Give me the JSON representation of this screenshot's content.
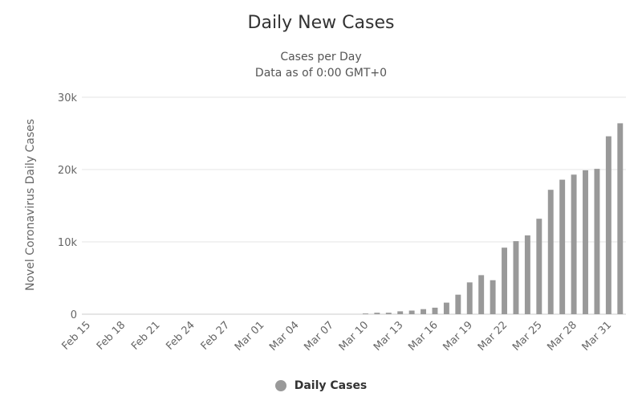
{
  "chart_data": {
    "type": "bar",
    "title": "Daily New Cases",
    "subtitle": [
      "Cases per Day",
      "Data as of 0:00 GMT+0"
    ],
    "xlabel": "",
    "ylabel": "Novel Coronavirus Daily Cases",
    "ylim": [
      0,
      30000
    ],
    "yticks": [
      {
        "value": 0,
        "label": "0"
      },
      {
        "value": 10000,
        "label": "10k"
      },
      {
        "value": 20000,
        "label": "20k"
      },
      {
        "value": 30000,
        "label": "30k"
      }
    ],
    "categories": [
      "Feb 15",
      "Feb 16",
      "Feb 17",
      "Feb 18",
      "Feb 19",
      "Feb 20",
      "Feb 21",
      "Feb 22",
      "Feb 23",
      "Feb 24",
      "Feb 25",
      "Feb 26",
      "Feb 27",
      "Feb 28",
      "Feb 29",
      "Mar 01",
      "Mar 02",
      "Mar 03",
      "Mar 04",
      "Mar 05",
      "Mar 06",
      "Mar 07",
      "Mar 08",
      "Mar 09",
      "Mar 10",
      "Mar 11",
      "Mar 12",
      "Mar 13",
      "Mar 14",
      "Mar 15",
      "Mar 16",
      "Mar 17",
      "Mar 18",
      "Mar 19",
      "Mar 20",
      "Mar 21",
      "Mar 22",
      "Mar 23",
      "Mar 24",
      "Mar 25",
      "Mar 26",
      "Mar 27",
      "Mar 28",
      "Mar 29",
      "Mar 30",
      "Mar 31",
      "Apr 01"
    ],
    "tick_labels": [
      "Feb 15",
      "Feb 18",
      "Feb 21",
      "Feb 24",
      "Feb 27",
      "Mar 01",
      "Mar 04",
      "Mar 07",
      "Mar 10",
      "Mar 13",
      "Mar 16",
      "Mar 19",
      "Mar 22",
      "Mar 25",
      "Mar 28",
      "Mar 31"
    ],
    "series": [
      {
        "name": "Daily Cases",
        "color": "#999999",
        "values": [
          0,
          0,
          0,
          0,
          0,
          0,
          0,
          0,
          0,
          0,
          0,
          0,
          0,
          0,
          0,
          0,
          0,
          0,
          0,
          0,
          0,
          0,
          0,
          0,
          100,
          200,
          200,
          400,
          500,
          700,
          900,
          1600,
          2700,
          4400,
          5400,
          4700,
          9200,
          10100,
          10900,
          13200,
          17200,
          18600,
          19300,
          19900,
          20100,
          24600,
          26400
        ]
      }
    ],
    "grid": true,
    "legend": "bottom-center"
  }
}
